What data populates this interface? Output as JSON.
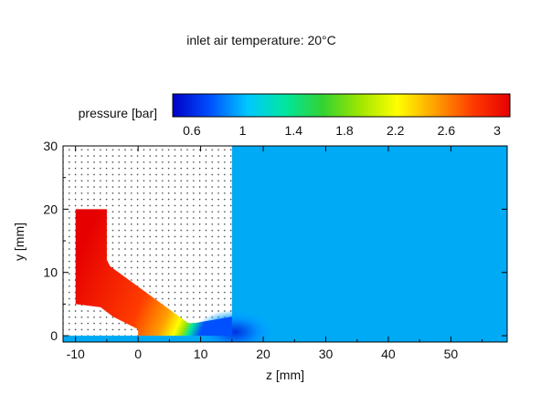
{
  "chart_data": {
    "type": "heatmap",
    "title": "inlet air temperature: 20°C",
    "xlabel": "z [mm]",
    "ylabel": "y [mm]",
    "xlim": [
      -12,
      59
    ],
    "ylim": [
      -1,
      30
    ],
    "x_ticks": [
      -10,
      0,
      10,
      20,
      30,
      40,
      50
    ],
    "y_ticks": [
      0,
      10,
      20,
      30
    ],
    "grid": "dotted mesh on solid region",
    "colorbar": {
      "label": "pressure [bar]",
      "range": [
        0.45,
        3.1
      ],
      "ticks": [
        0.6,
        1,
        1.4,
        1.8,
        2.2,
        2.6,
        3
      ],
      "colormap": [
        "#0000c8",
        "#0050ff",
        "#00c8ff",
        "#00e6a0",
        "#32d232",
        "#a0e600",
        "#ffff00",
        "#ffa000",
        "#ff3c00",
        "#e60000"
      ],
      "placement": "top"
    },
    "fields": {
      "nozzle_inlet_pressure_bar": 3.0,
      "nozzle_throat_pressure_bar": 1.8,
      "jet_low_pressure_bar": 0.6,
      "ambient_pressure_bar": 1.0
    },
    "geometry": {
      "nozzle_polygon_mm": [
        [
          -10,
          20
        ],
        [
          -5,
          20
        ],
        [
          -5,
          12
        ],
        [
          -4.5,
          11
        ],
        [
          8,
          2
        ],
        [
          9,
          2
        ],
        [
          15,
          3
        ],
        [
          15,
          0
        ],
        [
          0,
          0
        ],
        [
          0,
          1
        ],
        [
          -4,
          3
        ],
        [
          -6,
          4.5
        ],
        [
          -10,
          5
        ]
      ],
      "solid_block_mm": {
        "z": [
          -12,
          15
        ],
        "y": [
          0,
          30
        ]
      }
    }
  }
}
